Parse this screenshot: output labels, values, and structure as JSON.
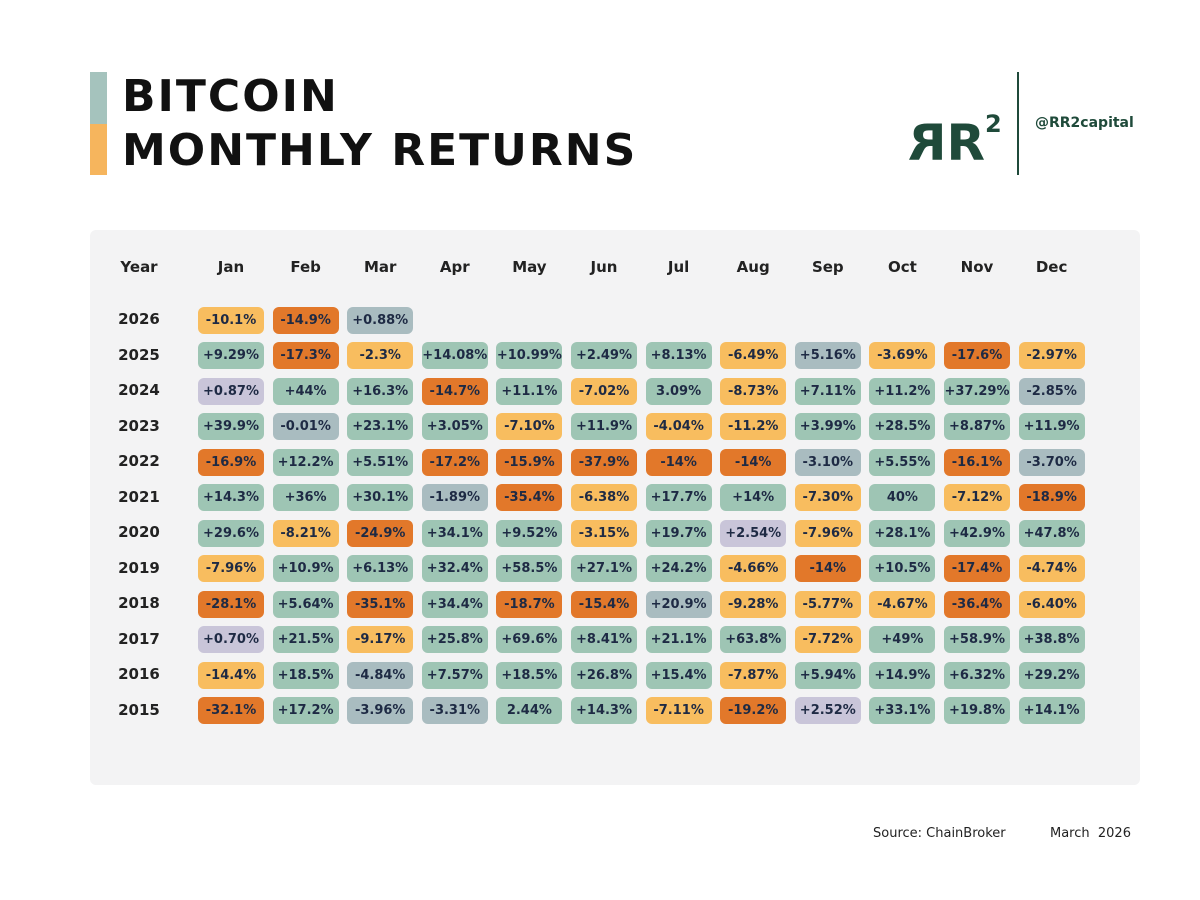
{
  "header": {
    "title_line1": "BITCOIN",
    "title_line2": "MONTHLY RETURNS",
    "handle": "@RR2capital"
  },
  "table": {
    "columns": [
      "Year",
      "Jan",
      "Feb",
      "Mar",
      "Apr",
      "May",
      "Jun",
      "Jul",
      "Aug",
      "Sep",
      "Oct",
      "Nov",
      "Dec"
    ],
    "rows": [
      {
        "year": "2026",
        "cells": [
          {
            "text": "-10.1%",
            "color": "#f8bd5f"
          },
          {
            "text": "-14.9%",
            "color": "#e2782a"
          },
          {
            "text": "+0.88%",
            "color": "#a9bcc0"
          }
        ]
      },
      {
        "year": "2025",
        "cells": [
          {
            "text": "+9.29%",
            "color": "#9ec5b4"
          },
          {
            "text": "-17.3%",
            "color": "#e2782a"
          },
          {
            "text": "-2.3%",
            "color": "#f8bd5f"
          },
          {
            "text": "+14.08%",
            "color": "#9ec5b4"
          },
          {
            "text": "+10.99%",
            "color": "#9ec5b4"
          },
          {
            "text": "+2.49%",
            "color": "#9ec5b4"
          },
          {
            "text": "+8.13%",
            "color": "#9ec5b4"
          },
          {
            "text": "-6.49%",
            "color": "#f8bd5f"
          },
          {
            "text": "+5.16%",
            "color": "#a9bcc0"
          },
          {
            "text": "-3.69%",
            "color": "#f8bd5f"
          },
          {
            "text": "-17.6%",
            "color": "#e2782a"
          },
          {
            "text": "-2.97%",
            "color": "#f8bd5f"
          }
        ]
      },
      {
        "year": "2024",
        "cells": [
          {
            "text": "+0.87%",
            "color": "#c9c5d9"
          },
          {
            "text": "+44%",
            "color": "#9ec5b4"
          },
          {
            "text": "+16.3%",
            "color": "#9ec5b4"
          },
          {
            "text": "-14.7%",
            "color": "#e2782a"
          },
          {
            "text": "+11.1%",
            "color": "#9ec5b4"
          },
          {
            "text": "-7.02%",
            "color": "#f8bd5f"
          },
          {
            "text": "3.09%",
            "color": "#9ec5b4"
          },
          {
            "text": "-8.73%",
            "color": "#f8bd5f"
          },
          {
            "text": "+7.11%",
            "color": "#9ec5b4"
          },
          {
            "text": "+11.2%",
            "color": "#9ec5b4"
          },
          {
            "text": "+37.29%",
            "color": "#9ec5b4"
          },
          {
            "text": "-2.85%",
            "color": "#a9bcc0"
          }
        ]
      },
      {
        "year": "2023",
        "cells": [
          {
            "text": "+39.9%",
            "color": "#9ec5b4"
          },
          {
            "text": "-0.01%",
            "color": "#a9bcc0"
          },
          {
            "text": "+23.1%",
            "color": "#9ec5b4"
          },
          {
            "text": "+3.05%",
            "color": "#9ec5b4"
          },
          {
            "text": "-7.10%",
            "color": "#f8bd5f"
          },
          {
            "text": "+11.9%",
            "color": "#9ec5b4"
          },
          {
            "text": "-4.04%",
            "color": "#f8bd5f"
          },
          {
            "text": "-11.2%",
            "color": "#f8bd5f"
          },
          {
            "text": "+3.99%",
            "color": "#9ec5b4"
          },
          {
            "text": "+28.5%",
            "color": "#9ec5b4"
          },
          {
            "text": "+8.87%",
            "color": "#9ec5b4"
          },
          {
            "text": "+11.9%",
            "color": "#9ec5b4"
          }
        ]
      },
      {
        "year": "2022",
        "cells": [
          {
            "text": "-16.9%",
            "color": "#e2782a"
          },
          {
            "text": "+12.2%",
            "color": "#9ec5b4"
          },
          {
            "text": "+5.51%",
            "color": "#9ec5b4"
          },
          {
            "text": "-17.2%",
            "color": "#e2782a"
          },
          {
            "text": "-15.9%",
            "color": "#e2782a"
          },
          {
            "text": "-37.9%",
            "color": "#e2782a"
          },
          {
            "text": "-14%",
            "color": "#e2782a"
          },
          {
            "text": "-14%",
            "color": "#e2782a"
          },
          {
            "text": "-3.10%",
            "color": "#a9bcc0"
          },
          {
            "text": "+5.55%",
            "color": "#9ec5b4"
          },
          {
            "text": "-16.1%",
            "color": "#e2782a"
          },
          {
            "text": "-3.70%",
            "color": "#a9bcc0"
          }
        ]
      },
      {
        "year": "2021",
        "cells": [
          {
            "text": "+14.3%",
            "color": "#9ec5b4"
          },
          {
            "text": "+36%",
            "color": "#9ec5b4"
          },
          {
            "text": "+30.1%",
            "color": "#9ec5b4"
          },
          {
            "text": "-1.89%",
            "color": "#a9bcc0"
          },
          {
            "text": "-35.4%",
            "color": "#e2782a"
          },
          {
            "text": "-6.38%",
            "color": "#f8bd5f"
          },
          {
            "text": "+17.7%",
            "color": "#9ec5b4"
          },
          {
            "text": "+14%",
            "color": "#9ec5b4"
          },
          {
            "text": "-7.30%",
            "color": "#f8bd5f"
          },
          {
            "text": "40%",
            "color": "#9ec5b4"
          },
          {
            "text": "-7.12%",
            "color": "#f8bd5f"
          },
          {
            "text": "-18.9%",
            "color": "#e2782a"
          }
        ]
      },
      {
        "year": "2020",
        "cells": [
          {
            "text": "+29.6%",
            "color": "#9ec5b4"
          },
          {
            "text": "-8.21%",
            "color": "#f8bd5f"
          },
          {
            "text": "-24.9%",
            "color": "#e2782a"
          },
          {
            "text": "+34.1%",
            "color": "#9ec5b4"
          },
          {
            "text": "+9.52%",
            "color": "#9ec5b4"
          },
          {
            "text": "-3.15%",
            "color": "#f8bd5f"
          },
          {
            "text": "+19.7%",
            "color": "#9ec5b4"
          },
          {
            "text": "+2.54%",
            "color": "#c9c5d9"
          },
          {
            "text": "-7.96%",
            "color": "#f8bd5f"
          },
          {
            "text": "+28.1%",
            "color": "#9ec5b4"
          },
          {
            "text": "+42.9%",
            "color": "#9ec5b4"
          },
          {
            "text": "+47.8%",
            "color": "#9ec5b4"
          }
        ]
      },
      {
        "year": "2019",
        "cells": [
          {
            "text": "-7.96%",
            "color": "#f8bd5f"
          },
          {
            "text": "+10.9%",
            "color": "#9ec5b4"
          },
          {
            "text": "+6.13%",
            "color": "#9ec5b4"
          },
          {
            "text": "+32.4%",
            "color": "#9ec5b4"
          },
          {
            "text": "+58.5%",
            "color": "#9ec5b4"
          },
          {
            "text": "+27.1%",
            "color": "#9ec5b4"
          },
          {
            "text": "+24.2%",
            "color": "#9ec5b4"
          },
          {
            "text": "-4.66%",
            "color": "#f8bd5f"
          },
          {
            "text": "-14%",
            "color": "#e2782a"
          },
          {
            "text": "+10.5%",
            "color": "#9ec5b4"
          },
          {
            "text": "-17.4%",
            "color": "#e2782a"
          },
          {
            "text": "-4.74%",
            "color": "#f8bd5f"
          }
        ]
      },
      {
        "year": "2018",
        "cells": [
          {
            "text": "-28.1%",
            "color": "#e2782a"
          },
          {
            "text": "+5.64%",
            "color": "#9ec5b4"
          },
          {
            "text": "-35.1%",
            "color": "#e2782a"
          },
          {
            "text": "+34.4%",
            "color": "#9ec5b4"
          },
          {
            "text": "-18.7%",
            "color": "#e2782a"
          },
          {
            "text": "-15.4%",
            "color": "#e2782a"
          },
          {
            "text": "+20.9%",
            "color": "#a9bcc0"
          },
          {
            "text": "-9.28%",
            "color": "#f8bd5f"
          },
          {
            "text": "-5.77%",
            "color": "#f8bd5f"
          },
          {
            "text": "-4.67%",
            "color": "#f8bd5f"
          },
          {
            "text": "-36.4%",
            "color": "#e2782a"
          },
          {
            "text": "-6.40%",
            "color": "#f8bd5f"
          }
        ]
      },
      {
        "year": "2017",
        "cells": [
          {
            "text": "+0.70%",
            "color": "#c9c5d9"
          },
          {
            "text": "+21.5%",
            "color": "#9ec5b4"
          },
          {
            "text": "-9.17%",
            "color": "#f8bd5f"
          },
          {
            "text": "+25.8%",
            "color": "#9ec5b4"
          },
          {
            "text": "+69.6%",
            "color": "#9ec5b4"
          },
          {
            "text": "+8.41%",
            "color": "#9ec5b4"
          },
          {
            "text": "+21.1%",
            "color": "#9ec5b4"
          },
          {
            "text": "+63.8%",
            "color": "#9ec5b4"
          },
          {
            "text": "-7.72%",
            "color": "#f8bd5f"
          },
          {
            "text": "+49%",
            "color": "#9ec5b4"
          },
          {
            "text": "+58.9%",
            "color": "#9ec5b4"
          },
          {
            "text": "+38.8%",
            "color": "#9ec5b4"
          }
        ]
      },
      {
        "year": "2016",
        "cells": [
          {
            "text": "-14.4%",
            "color": "#f8bd5f"
          },
          {
            "text": "+18.5%",
            "color": "#9ec5b4"
          },
          {
            "text": "-4.84%",
            "color": "#a9bcc0"
          },
          {
            "text": "+7.57%",
            "color": "#9ec5b4"
          },
          {
            "text": "+18.5%",
            "color": "#9ec5b4"
          },
          {
            "text": "+26.8%",
            "color": "#9ec5b4"
          },
          {
            "text": "+15.4%",
            "color": "#9ec5b4"
          },
          {
            "text": "-7.87%",
            "color": "#f8bd5f"
          },
          {
            "text": "+5.94%",
            "color": "#9ec5b4"
          },
          {
            "text": "+14.9%",
            "color": "#9ec5b4"
          },
          {
            "text": "+6.32%",
            "color": "#9ec5b4"
          },
          {
            "text": "+29.2%",
            "color": "#9ec5b4"
          }
        ]
      },
      {
        "year": "2015",
        "cells": [
          {
            "text": "-32.1%",
            "color": "#e2782a"
          },
          {
            "text": "+17.2%",
            "color": "#9ec5b4"
          },
          {
            "text": "-3.96%",
            "color": "#a9bcc0"
          },
          {
            "text": "-3.31%",
            "color": "#a9bcc0"
          },
          {
            "text": "2.44%",
            "color": "#9ec5b4"
          },
          {
            "text": "+14.3%",
            "color": "#9ec5b4"
          },
          {
            "text": "-7.11%",
            "color": "#f8bd5f"
          },
          {
            "text": "-19.2%",
            "color": "#e2782a"
          },
          {
            "text": "+2.52%",
            "color": "#c9c5d9"
          },
          {
            "text": "+33.1%",
            "color": "#9ec5b4"
          },
          {
            "text": "+19.8%",
            "color": "#9ec5b4"
          },
          {
            "text": "+14.1%",
            "color": "#9ec5b4"
          }
        ]
      }
    ]
  },
  "footer": {
    "source": "Source: ChainBroker",
    "date": "March  2026"
  }
}
